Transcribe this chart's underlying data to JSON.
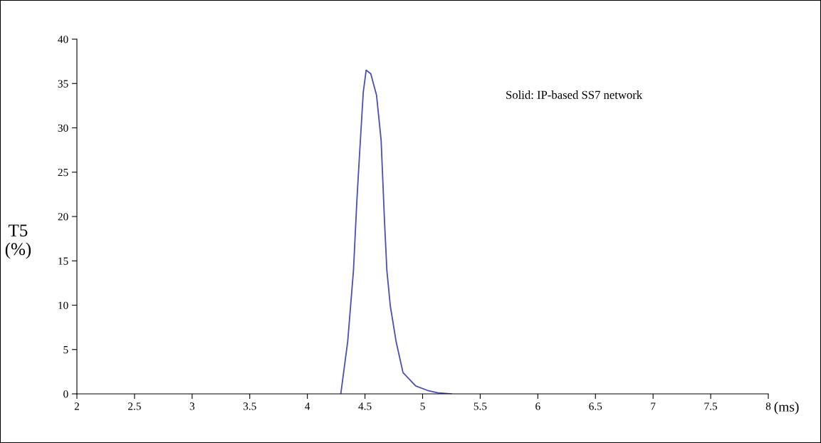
{
  "chart_data": {
    "type": "line",
    "xlabel": "(ms)",
    "ylabel": "T5\n(%)",
    "x": [
      4.29,
      4.35,
      4.4,
      4.43,
      4.46,
      4.485,
      4.51,
      4.55,
      4.6,
      4.64,
      4.67,
      4.69,
      4.72,
      4.77,
      4.83,
      4.94,
      5.04,
      5.14,
      5.25
    ],
    "series": [
      {
        "color": "#4a4fb4",
        "values": [
          0,
          5.9,
          13.9,
          21.9,
          28.6,
          34.0,
          36.5,
          36.1,
          33.7,
          28.6,
          19.3,
          13.9,
          9.9,
          5.9,
          2.4,
          0.9,
          0.4,
          0.1,
          0
        ]
      }
    ],
    "xlim": [
      2,
      8
    ],
    "xticks": [
      2,
      2.5,
      3,
      3.5,
      4,
      4.5,
      5,
      5.5,
      6,
      6.5,
      7,
      7.5,
      8
    ],
    "ylim": [
      0,
      40
    ],
    "yticks": [
      0,
      5,
      10,
      15,
      20,
      25,
      30,
      35,
      40
    ],
    "grid": false,
    "legend": false,
    "marker": "none",
    "line_style": "solid",
    "annotations": [
      "Solid: IP-based SS7 network"
    ]
  }
}
